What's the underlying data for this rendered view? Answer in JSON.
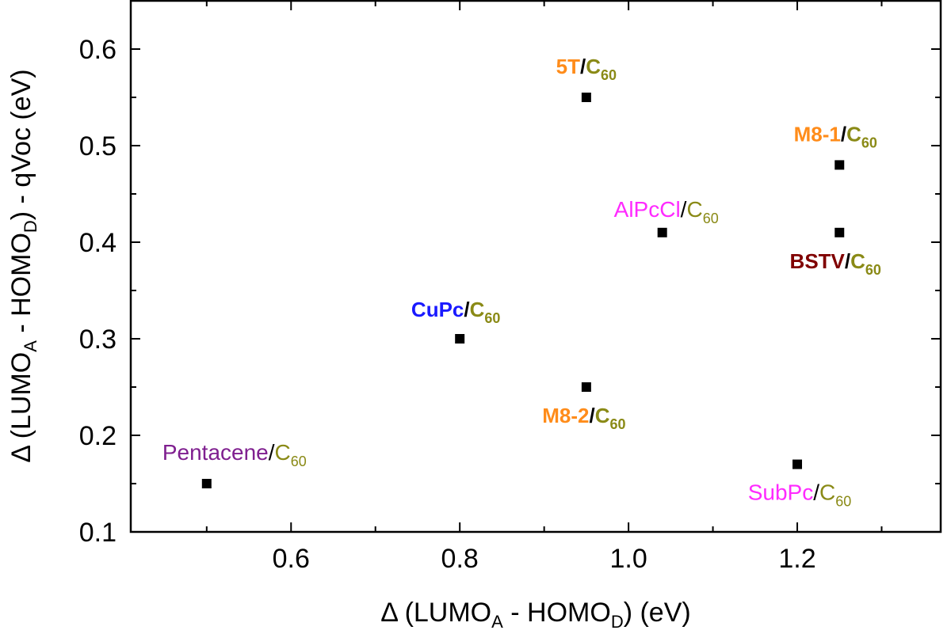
{
  "chart_data": {
    "type": "scatter",
    "xlabel": {
      "prefix": "Δ (LUMO",
      "sub1": "A",
      "middle": " - HOMO",
      "sub2": "D",
      "suffix": ") (eV)"
    },
    "ylabel": {
      "prefix": "Δ (LUMO",
      "sub1": "A",
      "middle": " - HOMO",
      "sub2": "D",
      "suffix": ") - qVoc (eV)"
    },
    "xlim": [
      0.41,
      1.37
    ],
    "ylim": [
      0.1,
      0.65
    ],
    "xticks": [
      0.6,
      0.8,
      1.0,
      1.2
    ],
    "xtick_labels": [
      "0.6",
      "0.8",
      "1.0",
      "1.2"
    ],
    "yticks": [
      0.1,
      0.2,
      0.3,
      0.4,
      0.5,
      0.6
    ],
    "ytick_labels": [
      "0.1",
      "0.2",
      "0.3",
      "0.4",
      "0.5",
      "0.6"
    ],
    "marker_color": "#000000",
    "acceptor_color": "#8a8a16",
    "points": [
      {
        "donor": "5T",
        "acceptor": "C",
        "acceptor_sub": "60",
        "x": 0.95,
        "y": 0.55,
        "donor_color": "#ff8c1a",
        "bold": true,
        "label_pos": "above"
      },
      {
        "donor": "M8-1",
        "acceptor": "C",
        "acceptor_sub": "60",
        "x": 1.25,
        "y": 0.48,
        "donor_color": "#ff8c1a",
        "bold": true,
        "label_pos": "above"
      },
      {
        "donor": "AlPcCl",
        "acceptor": "C",
        "acceptor_sub": "60",
        "x": 1.04,
        "y": 0.41,
        "donor_color": "#ff2aff",
        "bold": false,
        "label_pos": "above"
      },
      {
        "donor": "BSTV",
        "acceptor": "C",
        "acceptor_sub": "60",
        "x": 1.25,
        "y": 0.41,
        "donor_color": "#800000",
        "bold": true,
        "label_pos": "below"
      },
      {
        "donor": "CuPc",
        "acceptor": "C",
        "acceptor_sub": "60",
        "x": 0.8,
        "y": 0.3,
        "donor_color": "#1a1aff",
        "bold": true,
        "label_pos": "above"
      },
      {
        "donor": "M8-2",
        "acceptor": "C",
        "acceptor_sub": "60",
        "x": 0.95,
        "y": 0.25,
        "donor_color": "#ff8c1a",
        "bold": true,
        "label_pos": "below"
      },
      {
        "donor": "Pentacene",
        "acceptor": "C",
        "acceptor_sub": "60",
        "x": 0.5,
        "y": 0.15,
        "donor_color": "#7f1f8f",
        "bold": false,
        "label_pos": "above"
      },
      {
        "donor": "SubPc",
        "acceptor": "C",
        "acceptor_sub": "60",
        "x": 1.2,
        "y": 0.17,
        "donor_color": "#ff2aff",
        "bold": false,
        "label_pos": "below"
      }
    ]
  }
}
